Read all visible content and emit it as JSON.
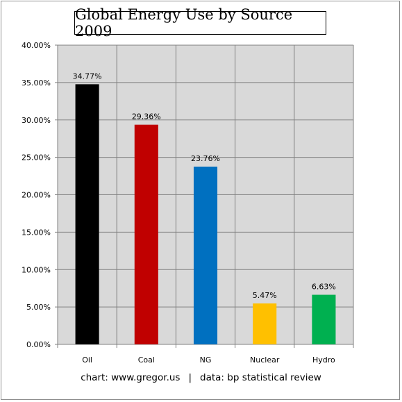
{
  "chart_data": {
    "type": "bar",
    "title": "Global Energy Use by Source 2009",
    "categories": [
      "Oil",
      "Coal",
      "NG",
      "Nuclear",
      "Hydro"
    ],
    "values": [
      34.77,
      29.36,
      23.76,
      5.47,
      6.63
    ],
    "data_labels": [
      "34.77%",
      "29.36%",
      "23.76%",
      "5.47%",
      "6.63%"
    ],
    "colors": [
      "#000000",
      "#c00000",
      "#0070c0",
      "#ffc000",
      "#00b050"
    ],
    "ylim": [
      0,
      40
    ],
    "yticks": [
      0,
      5,
      10,
      15,
      20,
      25,
      30,
      35,
      40
    ],
    "ytick_labels": [
      "0.00%",
      "5.00%",
      "10.00%",
      "15.00%",
      "20.00%",
      "25.00%",
      "30.00%",
      "35.00%",
      "40.00%"
    ],
    "xlabel": "",
    "ylabel": "",
    "grid": true,
    "legend": "none",
    "plot_background": "#d9d9d9",
    "gridline_color": "#808080"
  },
  "footer": {
    "credit": "chart: www.gregor.us",
    "separator": "|",
    "source": "data: bp statistical review"
  }
}
